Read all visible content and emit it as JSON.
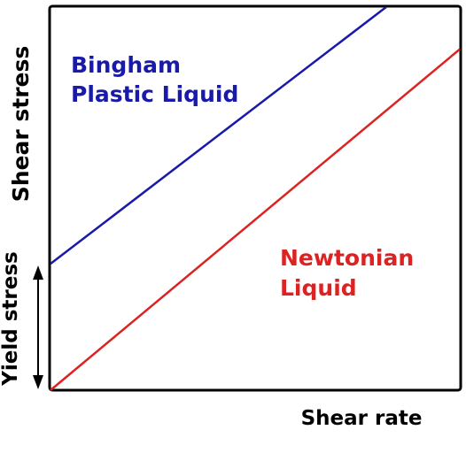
{
  "chart_data": {
    "type": "line",
    "xlabel": "Shear rate",
    "ylabel": "Shear stress",
    "yield_label": "Yield stress",
    "xlim": [
      0,
      1
    ],
    "ylim": [
      0,
      1
    ],
    "grid": false,
    "series": [
      {
        "name": "Bingham Plastic Liquid",
        "label_lines": [
          "Bingham",
          "Plastic Liquid"
        ],
        "color": "#1a1aaa",
        "x": [
          0,
          0.82
        ],
        "y": [
          0.33,
          1.0
        ]
      },
      {
        "name": "Newtonian Liquid",
        "label_lines": [
          "Newtonian",
          "Liquid"
        ],
        "color": "#dd2222",
        "x": [
          0,
          1.0
        ],
        "y": [
          0,
          0.89
        ]
      }
    ],
    "yield_stress": 0.33
  }
}
